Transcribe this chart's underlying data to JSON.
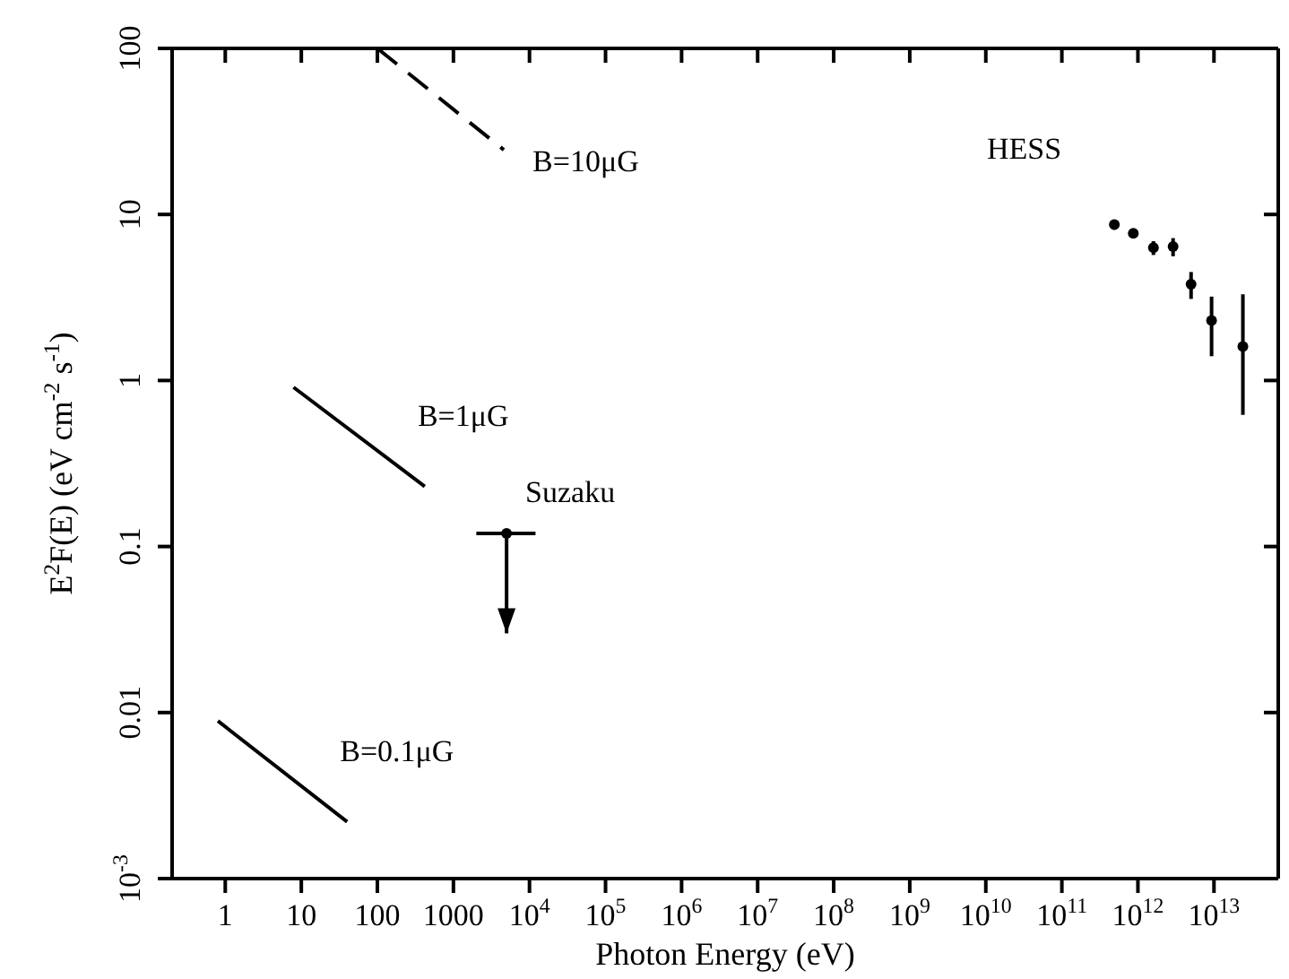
{
  "chart_data": {
    "type": "line",
    "xlabel": "Photon Energy (eV)",
    "ylabel": "E$^{2}$F(E) (eV cm$^{-2}$ s$^{-1}$)",
    "log": "xy",
    "xlim": [
      0.2,
      70000000000000.0
    ],
    "ylim": [
      0.001,
      100
    ],
    "xticks": [
      1,
      10,
      100,
      1000,
      {
        "value": 10000.0,
        "label": "10$^{4}$"
      },
      {
        "value": 100000.0,
        "label": "10$^{5}$"
      },
      {
        "value": 1000000.0,
        "label": "10$^{6}$"
      },
      {
        "value": 10000000.0,
        "label": "10$^{7}$"
      },
      {
        "value": 100000000.0,
        "label": "10$^{8}$"
      },
      {
        "value": 1000000000.0,
        "label": "10$^{9}$"
      },
      {
        "value": 10000000000.0,
        "label": "10$^{10}$"
      },
      {
        "value": 100000000000.0,
        "label": "10$^{11}$"
      },
      {
        "value": 1000000000000.0,
        "label": "10$^{12}$"
      },
      {
        "value": 10000000000000.0,
        "label": "10$^{13}$"
      }
    ],
    "yticks": [
      {
        "value": 0.001,
        "label": "10$^{-3}$"
      },
      0.01,
      0.1,
      1,
      10,
      100
    ],
    "series": [
      {
        "name": "B=10μG",
        "color": "#000000",
        "line_style": "dashed",
        "marker": "none",
        "x": [
          100,
          4600
        ],
        "values": [
          100,
          24.5
        ]
      },
      {
        "name": "B=1μG",
        "color": "#000000",
        "line_style": "solid",
        "marker": "none",
        "x": [
          7.9,
          420
        ],
        "values": [
          0.91,
          0.23
        ]
      },
      {
        "name": "B=0.1μG",
        "color": "#000000",
        "line_style": "solid",
        "marker": "none",
        "x": [
          0.8,
          40
        ],
        "values": [
          0.0089,
          0.0022
        ]
      },
      {
        "name": "Suzaku",
        "type": "scatter",
        "color": "#000000",
        "marker": "circle",
        "x": [
          5000
        ],
        "values": [
          0.12
        ],
        "xerrors": [
          [
            2000,
            12000
          ]
        ],
        "errors": [
          [
            0.03,
            0.12
          ]
        ]
      },
      {
        "name": "HESS",
        "type": "scatter",
        "color": "#000000",
        "marker": "circle",
        "x": [
          490000000000.0,
          870000000000.0,
          1600000000000.0,
          2900000000000.0,
          5000000000000.0,
          9300000000000.0,
          24000000000000.0
        ],
        "values": [
          8.7,
          7.7,
          6.3,
          6.4,
          3.8,
          2.3,
          1.6
        ],
        "errors": [
          0.6,
          0.5,
          0.6,
          0.8,
          0.7,
          [
            1.4,
            3.2
          ],
          [
            0.62,
            3.3
          ]
        ]
      }
    ]
  }
}
